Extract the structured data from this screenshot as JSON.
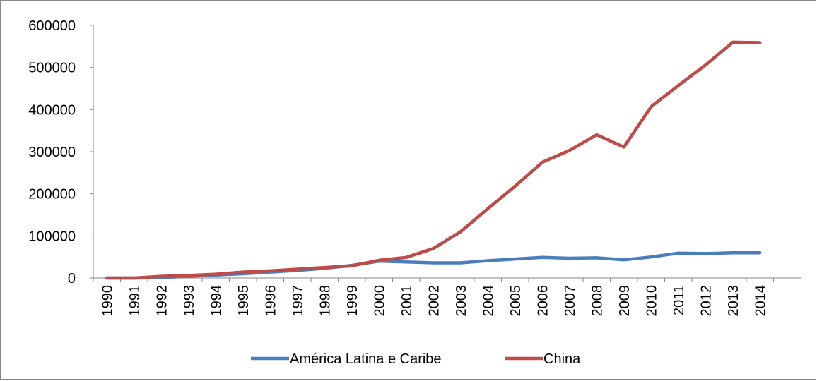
{
  "chart_data": {
    "type": "line",
    "title": "",
    "xlabel": "",
    "ylabel": "",
    "x": [
      "1990",
      "1991",
      "1992",
      "1993",
      "1994",
      "1995",
      "1996",
      "1997",
      "1998",
      "1999",
      "2000",
      "2001",
      "2002",
      "2003",
      "2004",
      "2005",
      "2006",
      "2007",
      "2008",
      "2009",
      "2010",
      "2011",
      "2012",
      "2013",
      "2014"
    ],
    "ylim": [
      0,
      600000
    ],
    "yticks": [
      "0",
      "100000",
      "200000",
      "300000",
      "400000",
      "500000",
      "600000"
    ],
    "grid": false,
    "legend_position": "bottom",
    "series": [
      {
        "name": "América Latina e Caribe",
        "color": "#4a7ebb",
        "values": [
          0,
          0,
          1000,
          4000,
          7000,
          10000,
          14000,
          18000,
          23000,
          30000,
          40000,
          38000,
          36000,
          36000,
          41000,
          45000,
          49000,
          47000,
          48000,
          43000,
          50000,
          59000,
          58000,
          60000,
          60000
        ]
      },
      {
        "name": "China",
        "color": "#be4b48",
        "values": [
          0,
          0,
          4000,
          6000,
          9000,
          14000,
          17000,
          21000,
          25000,
          29000,
          42000,
          49000,
          70000,
          110000,
          165000,
          218000,
          275000,
          303000,
          340000,
          311000,
          407000,
          457000,
          506000,
          560000,
          559000
        ]
      }
    ]
  }
}
